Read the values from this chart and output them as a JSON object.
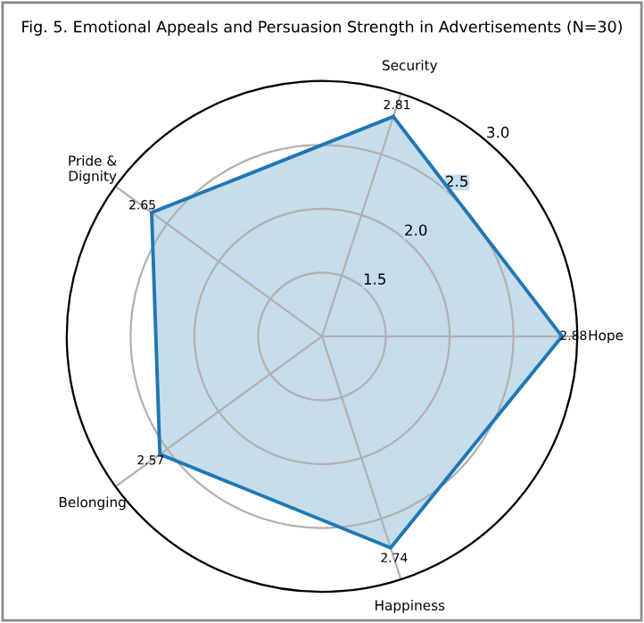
{
  "chart_data": {
    "type": "radar",
    "title": "Fig. 5. Emotional Appeals and Persuasion Strength in Advertisements (N=30)",
    "categories": [
      "Security",
      "Hope",
      "Happiness",
      "Belonging",
      "Pride &\nDignity"
    ],
    "series": [
      {
        "color": "#1f77b4",
        "values": [
          2.81,
          2.88,
          2.74,
          2.57,
          2.65
        ]
      }
    ],
    "ylim": [
      1.0,
      3.0
    ],
    "yticks": [
      1.5,
      {
        "value": 2.0,
        "label": "2.0"
      },
      2.5,
      {
        "value": 3.0,
        "label": "3.0"
      }
    ],
    "grid": true,
    "data_labels": true
  }
}
